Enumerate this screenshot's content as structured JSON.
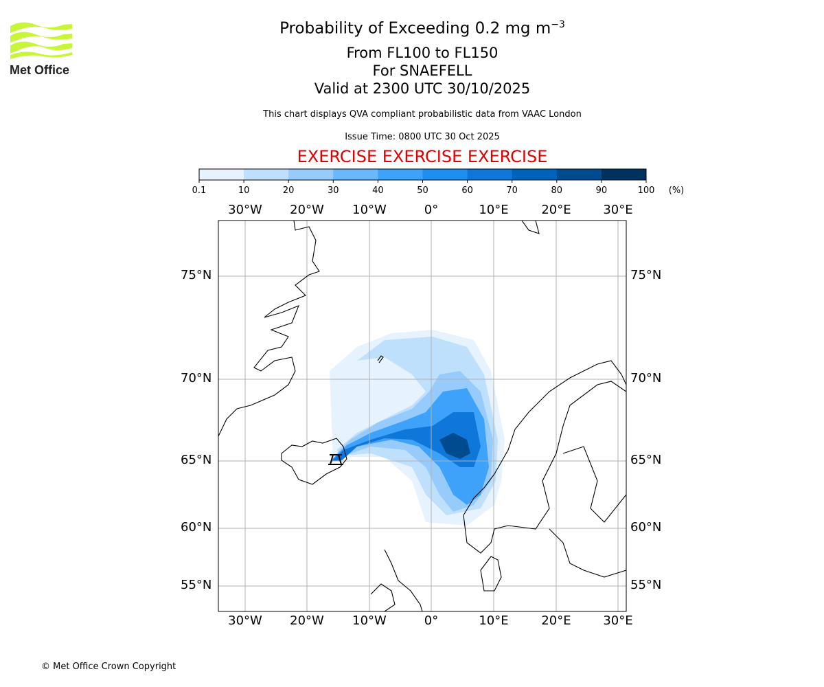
{
  "header": {
    "title_main": "Probability of Exceeding 0.2 mg m",
    "title_exp": "−3",
    "line2": "From FL100 to FL150",
    "line3": "For SNAEFELL",
    "line4": "Valid at 2300 UTC 30/10/2025",
    "note": "This chart displays QVA compliant probabilistic data from VAAC London",
    "issue_time": "Issue Time: 0800 UTC 30 Oct 2025",
    "exercise": "EXERCISE EXERCISE EXERCISE"
  },
  "logo": {
    "text": "Met Office",
    "color": "#c6f53a"
  },
  "colorbar": {
    "ticks": [
      "0.1",
      "10",
      "20",
      "30",
      "40",
      "50",
      "60",
      "70",
      "80",
      "90",
      "100"
    ],
    "unit": "(%)",
    "colors": [
      "#e6f2fd",
      "#bfe0fc",
      "#96cbfb",
      "#6ab7fb",
      "#3ea2fa",
      "#1e8ff0",
      "#0f77d9",
      "#0063bb",
      "#004b90",
      "#003260"
    ]
  },
  "map": {
    "lon_labels": [
      "30°W",
      "20°W",
      "10°W",
      "0°",
      "10°E",
      "20°E",
      "30°E"
    ],
    "lat_labels": [
      "75°N",
      "70°N",
      "65°N",
      "60°N",
      "55°N"
    ],
    "volcano": "SNAEFELL",
    "volcano_icon": "volcano-icon"
  },
  "footer": {
    "copyright": "© Met Office Crown Copyright"
  }
}
